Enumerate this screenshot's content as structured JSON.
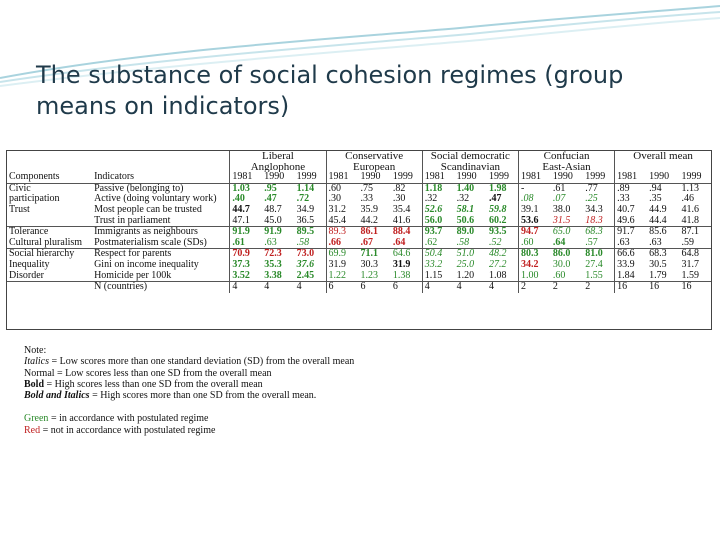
{
  "slide": {
    "title": "The substance of social cohesion regimes (group means on indicators)"
  },
  "table": {
    "group_headers": [
      {
        "line1": "Liberal",
        "line2": "Anglophone"
      },
      {
        "line1": "Conservative",
        "line2": "European"
      },
      {
        "line1": "Social democratic",
        "line2": "Scandinavian"
      },
      {
        "line1": "Confucian",
        "line2": "East-Asian"
      },
      {
        "line1": "Overall mean",
        "line2": ""
      }
    ],
    "col_components": "Components",
    "col_indicators": "Indicators",
    "years": [
      "1981",
      "1990",
      "1999"
    ],
    "rows": [
      {
        "component": "Civic",
        "indicator": "Passive (belonging to)",
        "cells": [
          {
            "v": "1.03",
            "s": "g b"
          },
          {
            "v": ".95",
            "s": "g b"
          },
          {
            "v": "1.14",
            "s": "g b"
          },
          {
            "v": ".60",
            "s": ""
          },
          {
            "v": ".75",
            "s": ""
          },
          {
            "v": ".82",
            "s": ""
          },
          {
            "v": "1.18",
            "s": "g b"
          },
          {
            "v": "1.40",
            "s": "g b"
          },
          {
            "v": "1.98",
            "s": "g b"
          },
          {
            "v": "-",
            "s": ""
          },
          {
            "v": ".61",
            "s": ""
          },
          {
            "v": ".77",
            "s": ""
          },
          {
            "v": ".89",
            "s": ""
          },
          {
            "v": ".94",
            "s": ""
          },
          {
            "v": "1.13",
            "s": ""
          }
        ]
      },
      {
        "component": "participation",
        "indicator": "Active (doing voluntary work)",
        "cells": [
          {
            "v": ".40",
            "s": "g b"
          },
          {
            "v": ".47",
            "s": "g b"
          },
          {
            "v": ".72",
            "s": "g b"
          },
          {
            "v": ".30",
            "s": ""
          },
          {
            "v": ".33",
            "s": ""
          },
          {
            "v": ".30",
            "s": ""
          },
          {
            "v": ".32",
            "s": ""
          },
          {
            "v": ".32",
            "s": ""
          },
          {
            "v": ".47",
            "s": "b"
          },
          {
            "v": ".08",
            "s": "g i"
          },
          {
            "v": ".07",
            "s": "g i"
          },
          {
            "v": ".25",
            "s": "g i"
          },
          {
            "v": ".33",
            "s": ""
          },
          {
            "v": ".35",
            "s": ""
          },
          {
            "v": ".46",
            "s": ""
          }
        ]
      },
      {
        "component": "Trust",
        "indicator": "Most people can be trusted",
        "cells": [
          {
            "v": "44.7",
            "s": "b"
          },
          {
            "v": "48.7",
            "s": ""
          },
          {
            "v": "34.9",
            "s": ""
          },
          {
            "v": "31.2",
            "s": ""
          },
          {
            "v": "35.9",
            "s": ""
          },
          {
            "v": "35.4",
            "s": ""
          },
          {
            "v": "52.6",
            "s": "g bi"
          },
          {
            "v": "58.1",
            "s": "g bi"
          },
          {
            "v": "59.8",
            "s": "g bi"
          },
          {
            "v": "39.1",
            "s": ""
          },
          {
            "v": "38.0",
            "s": ""
          },
          {
            "v": "34.3",
            "s": ""
          },
          {
            "v": "40.7",
            "s": ""
          },
          {
            "v": "44.9",
            "s": ""
          },
          {
            "v": "41.6",
            "s": ""
          }
        ]
      },
      {
        "component": "",
        "indicator": "Trust in parliament",
        "cells": [
          {
            "v": "47.1",
            "s": ""
          },
          {
            "v": "45.0",
            "s": ""
          },
          {
            "v": "36.5",
            "s": ""
          },
          {
            "v": "45.4",
            "s": ""
          },
          {
            "v": "44.2",
            "s": ""
          },
          {
            "v": "41.6",
            "s": ""
          },
          {
            "v": "56.0",
            "s": "g b"
          },
          {
            "v": "50.6",
            "s": "g b"
          },
          {
            "v": "60.2",
            "s": "g b"
          },
          {
            "v": "53.6",
            "s": "b"
          },
          {
            "v": "31.5",
            "s": "r i"
          },
          {
            "v": "18.3",
            "s": "r i"
          },
          {
            "v": "49.6",
            "s": ""
          },
          {
            "v": "44.4",
            "s": ""
          },
          {
            "v": "41.8",
            "s": ""
          }
        ]
      },
      {
        "component": "Tolerance",
        "indicator": "Immigrants as neighbours",
        "cells": [
          {
            "v": "91.9",
            "s": "g b"
          },
          {
            "v": "91.9",
            "s": "g b"
          },
          {
            "v": "89.5",
            "s": "g b"
          },
          {
            "v": "89.3",
            "s": "r"
          },
          {
            "v": "86.1",
            "s": "r b"
          },
          {
            "v": "88.4",
            "s": "r b"
          },
          {
            "v": "93.7",
            "s": "g b"
          },
          {
            "v": "89.0",
            "s": "g b"
          },
          {
            "v": "93.5",
            "s": "g b"
          },
          {
            "v": "94.7",
            "s": "r b"
          },
          {
            "v": "65.0",
            "s": "g i"
          },
          {
            "v": "68.3",
            "s": "g i"
          },
          {
            "v": "91.7",
            "s": ""
          },
          {
            "v": "85.6",
            "s": ""
          },
          {
            "v": "87.1",
            "s": ""
          }
        ]
      },
      {
        "component": "Cultural pluralism",
        "indicator": "Postmaterialism scale (SDs)",
        "cells": [
          {
            "v": ".61",
            "s": "g b"
          },
          {
            "v": ".63",
            "s": "g"
          },
          {
            "v": ".58",
            "s": "g i"
          },
          {
            "v": ".66",
            "s": "r b"
          },
          {
            "v": ".67",
            "s": "r b"
          },
          {
            "v": ".64",
            "s": "r b"
          },
          {
            "v": ".62",
            "s": "g"
          },
          {
            "v": ".58",
            "s": "g i"
          },
          {
            "v": ".52",
            "s": "g i"
          },
          {
            "v": ".60",
            "s": "g"
          },
          {
            "v": ".64",
            "s": "g b"
          },
          {
            "v": ".57",
            "s": "g"
          },
          {
            "v": ".63",
            "s": ""
          },
          {
            "v": ".63",
            "s": ""
          },
          {
            "v": ".59",
            "s": ""
          }
        ]
      },
      {
        "component": "Social hierarchy",
        "indicator": "Respect for parents",
        "cells": [
          {
            "v": "70.9",
            "s": "r b"
          },
          {
            "v": "72.3",
            "s": "r b"
          },
          {
            "v": "73.0",
            "s": "r b"
          },
          {
            "v": "69.9",
            "s": "g"
          },
          {
            "v": "71.1",
            "s": "g b"
          },
          {
            "v": "64.6",
            "s": "g"
          },
          {
            "v": "50.4",
            "s": "g i"
          },
          {
            "v": "51.0",
            "s": "g i"
          },
          {
            "v": "48.2",
            "s": "g i"
          },
          {
            "v": "80.3",
            "s": "g b"
          },
          {
            "v": "86.0",
            "s": "g b"
          },
          {
            "v": "81.0",
            "s": "g b"
          },
          {
            "v": "66.6",
            "s": ""
          },
          {
            "v": "68.3",
            "s": ""
          },
          {
            "v": "64.8",
            "s": ""
          }
        ]
      },
      {
        "component": "Inequality",
        "indicator": "Gini on income inequality",
        "cells": [
          {
            "v": "37.3",
            "s": "g b"
          },
          {
            "v": "35.3",
            "s": "g b"
          },
          {
            "v": "37.6",
            "s": "g bi"
          },
          {
            "v": "31.9",
            "s": ""
          },
          {
            "v": "30.3",
            "s": ""
          },
          {
            "v": "31.9",
            "s": "b"
          },
          {
            "v": "33.2",
            "s": "g i"
          },
          {
            "v": "25.0",
            "s": "g i"
          },
          {
            "v": "27.2",
            "s": "g i"
          },
          {
            "v": "34.2",
            "s": "r b"
          },
          {
            "v": "30.0",
            "s": "g"
          },
          {
            "v": "27.4",
            "s": "g"
          },
          {
            "v": "33.9",
            "s": ""
          },
          {
            "v": "30.5",
            "s": ""
          },
          {
            "v": "31.7",
            "s": ""
          }
        ]
      },
      {
        "component": "Disorder",
        "indicator": "Homicide per 100k",
        "cells": [
          {
            "v": "3.52",
            "s": "g b"
          },
          {
            "v": "3.38",
            "s": "g b"
          },
          {
            "v": "2.45",
            "s": "g b"
          },
          {
            "v": "1.22",
            "s": "g"
          },
          {
            "v": "1.23",
            "s": "g"
          },
          {
            "v": "1.38",
            "s": "g"
          },
          {
            "v": "1.15",
            "s": ""
          },
          {
            "v": "1.20",
            "s": ""
          },
          {
            "v": "1.08",
            "s": ""
          },
          {
            "v": "1.00",
            "s": "g"
          },
          {
            "v": ".60",
            "s": "g"
          },
          {
            "v": "1.55",
            "s": "g"
          },
          {
            "v": "1.84",
            "s": ""
          },
          {
            "v": "1.79",
            "s": ""
          },
          {
            "v": "1.59",
            "s": ""
          }
        ]
      },
      {
        "component": "",
        "indicator": "N (countries)",
        "cells": [
          {
            "v": "4",
            "s": ""
          },
          {
            "v": "4",
            "s": ""
          },
          {
            "v": "4",
            "s": ""
          },
          {
            "v": "6",
            "s": ""
          },
          {
            "v": "6",
            "s": ""
          },
          {
            "v": "6",
            "s": ""
          },
          {
            "v": "4",
            "s": ""
          },
          {
            "v": "4",
            "s": ""
          },
          {
            "v": "4",
            "s": ""
          },
          {
            "v": "2",
            "s": ""
          },
          {
            "v": "2",
            "s": ""
          },
          {
            "v": "2",
            "s": ""
          },
          {
            "v": "16",
            "s": ""
          },
          {
            "v": "16",
            "s": ""
          },
          {
            "v": "16",
            "s": ""
          }
        ]
      }
    ]
  },
  "notes": {
    "heading": "Note:",
    "italics_label": "Italics",
    "italics_text": " = Low scores more than one standard deviation (SD) from the overall mean",
    "normal_text": "Normal = Low scores less than one SD from the overall mean",
    "bold_label": "Bold",
    "bold_text": " = High scores less than one SD from the overall mean",
    "bolditalic_label": "Bold and Italics",
    "bolditalic_text": " = High scores more than one SD from the overall mean.",
    "green_label": "Green",
    "green_text": " = in accordance with postulated regime",
    "red_label": "Red",
    "red_text": " = not in accordance with postulated regime"
  },
  "colors": {
    "green": "#2a8a2a",
    "red": "#c02020",
    "title": "#1f3a4a"
  }
}
